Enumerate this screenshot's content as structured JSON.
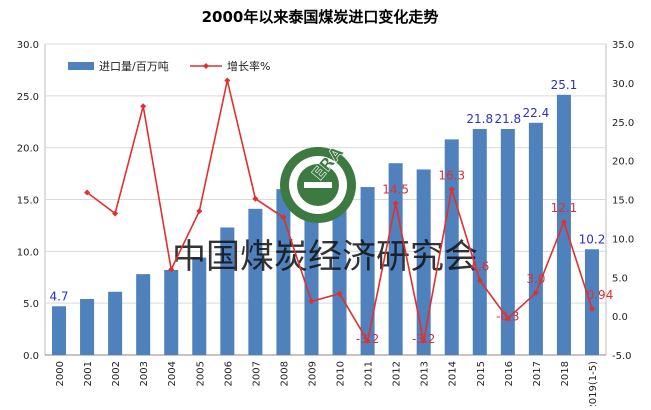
{
  "chart_data": {
    "type": "bar",
    "title": "2000年以来泰国煤炭进口变化走势",
    "categories": [
      "2000",
      "2001",
      "2002",
      "2003",
      "2004",
      "2005",
      "2006",
      "2007",
      "2008",
      "2009",
      "2010",
      "2011",
      "2012",
      "2013",
      "2014",
      "2015",
      "2016",
      "2017",
      "2018",
      "2019(1-5)"
    ],
    "series": [
      {
        "name": "进口量/百万吨",
        "type": "bar",
        "axis": "left",
        "color": "#4f81bd",
        "values": [
          4.7,
          5.4,
          6.1,
          7.8,
          8.2,
          9.4,
          12.3,
          14.1,
          16.0,
          16.2,
          16.0,
          16.2,
          18.5,
          17.9,
          20.8,
          21.8,
          21.8,
          22.4,
          25.1,
          10.2
        ],
        "labels": {
          "0": "4.7",
          "15": "21.8",
          "16": "21.8",
          "17": "22.4",
          "18": "25.1",
          "19": "10.2"
        },
        "label_color": "#2f2fd0"
      },
      {
        "name": "增长率%",
        "type": "line",
        "axis": "right",
        "color": "#e03030",
        "values": [
          null,
          15.9,
          13.2,
          27.0,
          6.0,
          13.5,
          30.3,
          15.1,
          12.7,
          1.9,
          2.9,
          -3.2,
          14.5,
          -3.2,
          16.3,
          4.6,
          -0.3,
          3.0,
          12.1,
          0.94
        ],
        "labels": {
          "11": "-3.2",
          "12": "14.5",
          "13": "-3.2",
          "14": "16.3",
          "15": "4.6",
          "16": "-0.3",
          "17": "3.0",
          "18": "12.1",
          "19": "0.94"
        },
        "label_color": "#e03030"
      }
    ],
    "y_left": {
      "min": 0,
      "max": 30,
      "step": 5,
      "tick_labels": [
        "0.0",
        "5.0",
        "10.0",
        "15.0",
        "20.0",
        "25.0",
        "30.0"
      ]
    },
    "y_right": {
      "min": -5,
      "max": 35,
      "step": 5,
      "tick_labels": [
        "-5.0",
        "0.0",
        "5.0",
        "10.0",
        "15.0",
        "20.0",
        "25.0",
        "30.0",
        "35.0"
      ]
    },
    "grid": true,
    "legend_position": "top-left",
    "watermark_text": "中国煤炭经济研究会",
    "logo_text": "ERA"
  }
}
